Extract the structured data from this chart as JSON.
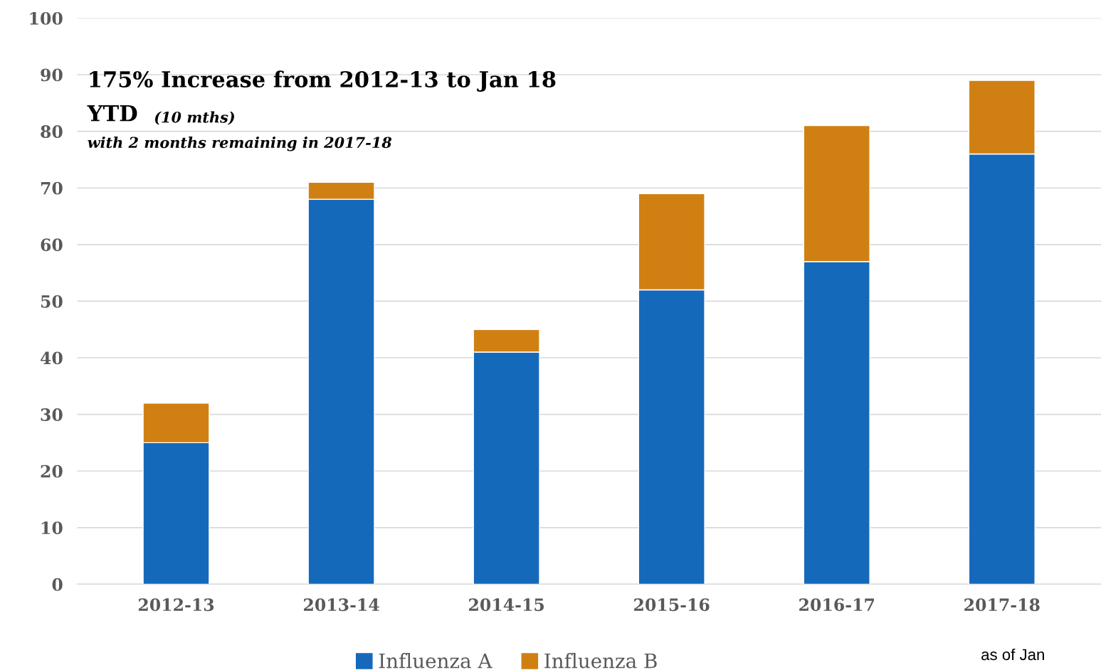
{
  "chart_data": {
    "type": "bar",
    "stacked": true,
    "categories": [
      "2012-13",
      "2013-14",
      "2014-15",
      "2015-16",
      "2016-17",
      "2017-18"
    ],
    "series": [
      {
        "name": "Influenza A",
        "color": "#1569bb",
        "values": [
          25,
          68,
          41,
          52,
          57,
          76
        ]
      },
      {
        "name": "Influenza B",
        "color": "#d08012",
        "values": [
          7,
          3,
          4,
          17,
          24,
          13
        ]
      }
    ],
    "ylim": [
      0,
      100
    ],
    "yticks": [
      0,
      10,
      20,
      30,
      40,
      50,
      60,
      70,
      80,
      90,
      100
    ],
    "grid": "y",
    "legend": "bottom",
    "annotations": [
      "175% Increase from 2012-13 to Jan 18",
      "YTD",
      "(10 mths)",
      "with 2 months remaining in 2017-18",
      "as of Jan"
    ]
  }
}
